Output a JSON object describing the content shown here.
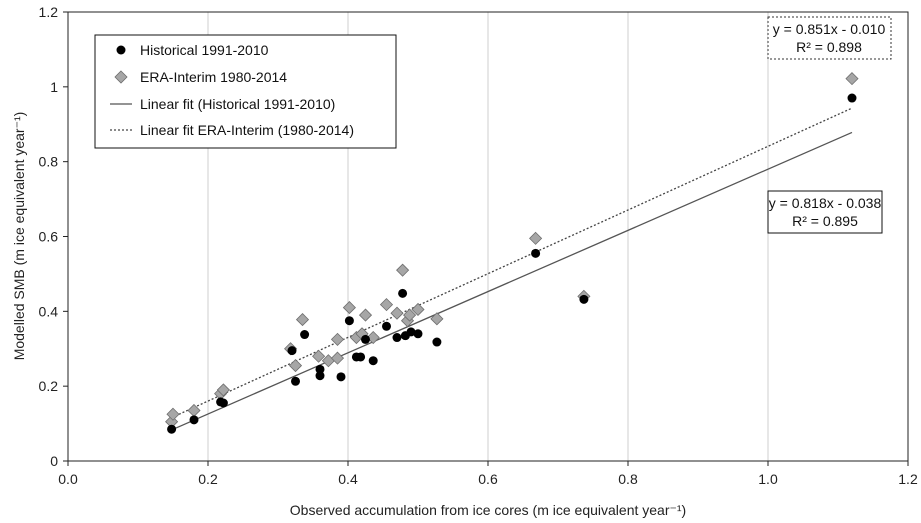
{
  "chart_data": {
    "type": "scatter",
    "title": "",
    "xlabel": "Observed accumulation from ice cores (m ice equivalent year⁻¹)",
    "ylabel": "Modelled SMB (m ice equivalent year⁻¹)",
    "xlim": [
      0,
      1.2
    ],
    "ylim": [
      0,
      1.2
    ],
    "xticks": [
      "0.0",
      "0.2",
      "0.4",
      "0.6",
      "0.8",
      "1.0",
      "1.2"
    ],
    "yticks": [
      "0",
      "0.2",
      "0.4",
      "0.6",
      "0.8",
      "1",
      "1.2"
    ],
    "grid": "vertical",
    "legend_position": "top-left",
    "series": [
      {
        "name": "Historical 1991-2010",
        "marker": "circle",
        "color": "#000000",
        "points": [
          [
            0.148,
            0.085
          ],
          [
            0.18,
            0.11
          ],
          [
            0.218,
            0.158
          ],
          [
            0.222,
            0.155
          ],
          [
            0.32,
            0.295
          ],
          [
            0.325,
            0.213
          ],
          [
            0.338,
            0.338
          ],
          [
            0.36,
            0.228
          ],
          [
            0.36,
            0.245
          ],
          [
            0.39,
            0.225
          ],
          [
            0.402,
            0.375
          ],
          [
            0.412,
            0.278
          ],
          [
            0.418,
            0.278
          ],
          [
            0.425,
            0.325
          ],
          [
            0.436,
            0.268
          ],
          [
            0.455,
            0.36
          ],
          [
            0.47,
            0.33
          ],
          [
            0.478,
            0.448
          ],
          [
            0.482,
            0.335
          ],
          [
            0.49,
            0.345
          ],
          [
            0.5,
            0.34
          ],
          [
            0.527,
            0.318
          ],
          [
            0.668,
            0.555
          ],
          [
            0.737,
            0.432
          ],
          [
            1.12,
            0.97
          ]
        ]
      },
      {
        "name": "ERA-Interim 1980-2014",
        "marker": "diamond",
        "color": "#a6a6a6",
        "points": [
          [
            0.148,
            0.105
          ],
          [
            0.15,
            0.125
          ],
          [
            0.18,
            0.135
          ],
          [
            0.218,
            0.18
          ],
          [
            0.222,
            0.19
          ],
          [
            0.318,
            0.3
          ],
          [
            0.325,
            0.255
          ],
          [
            0.335,
            0.378
          ],
          [
            0.358,
            0.28
          ],
          [
            0.372,
            0.268
          ],
          [
            0.385,
            0.325
          ],
          [
            0.385,
            0.275
          ],
          [
            0.402,
            0.41
          ],
          [
            0.412,
            0.33
          ],
          [
            0.42,
            0.34
          ],
          [
            0.425,
            0.39
          ],
          [
            0.436,
            0.33
          ],
          [
            0.455,
            0.418
          ],
          [
            0.47,
            0.395
          ],
          [
            0.478,
            0.51
          ],
          [
            0.485,
            0.375
          ],
          [
            0.488,
            0.39
          ],
          [
            0.5,
            0.405
          ],
          [
            0.527,
            0.38
          ],
          [
            0.668,
            0.595
          ],
          [
            0.737,
            0.44
          ],
          [
            1.12,
            1.022
          ]
        ]
      },
      {
        "name": "Linear fit (Historical 1991-2010)",
        "type": "line",
        "style": "solid",
        "color": "#555555",
        "slope": 0.818,
        "intercept": -0.038,
        "x_range": [
          0.148,
          1.12
        ]
      },
      {
        "name": "Linear fit ERA-Interim (1980-2014)",
        "type": "line",
        "style": "dotted",
        "color": "#444444",
        "slope": 0.851,
        "intercept": -0.01,
        "x_range": [
          0.148,
          1.12
        ]
      }
    ],
    "annotations": [
      {
        "id": "era",
        "line1": "y = 0.851x - 0.010",
        "line2": "R² = 0.898",
        "box_style": "dotted"
      },
      {
        "id": "hist",
        "line1": "y = 0.818x - 0.038",
        "line2": "R² = 0.895",
        "box_style": "solid"
      }
    ]
  }
}
